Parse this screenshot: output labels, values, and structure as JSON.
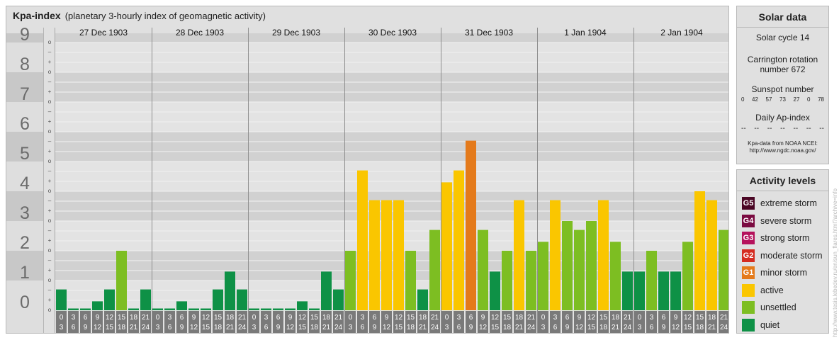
{
  "header": {
    "title": "Kpa-index",
    "subtitle": "(planetary 3-hourly index of geomagnetic activity)"
  },
  "chart_data": {
    "type": "bar",
    "ylim": [
      0,
      9
    ],
    "y_ticks": [
      "0",
      "1",
      "2",
      "3",
      "4",
      "5",
      "6",
      "7",
      "8",
      "9"
    ],
    "sub_ticks": [
      "o",
      "+",
      "–"
    ],
    "days": [
      {
        "label": "27 Dec 1903",
        "values": [
          0.7,
          0,
          0,
          0.3,
          0.7,
          2.0,
          0,
          0.7
        ]
      },
      {
        "label": "28 Dec 1903",
        "values": [
          0,
          0,
          0.3,
          0,
          0,
          0.7,
          1.3,
          0.7
        ]
      },
      {
        "label": "29 Dec 1903",
        "values": [
          0,
          0,
          0,
          0,
          0.3,
          0,
          1.3,
          0.7
        ]
      },
      {
        "label": "30 Dec 1903",
        "values": [
          2.0,
          4.7,
          3.7,
          3.7,
          3.7,
          2.0,
          0.7,
          2.7
        ]
      },
      {
        "label": "31 Dec 1903",
        "values": [
          4.3,
          4.7,
          5.7,
          2.7,
          1.3,
          2.0,
          3.7,
          2.0
        ]
      },
      {
        "label": "1 Jan 1904",
        "values": [
          2.3,
          3.7,
          3.0,
          2.7,
          3.0,
          3.7,
          2.3,
          1.3
        ]
      },
      {
        "label": "2 Jan 1904",
        "values": [
          1.3,
          2.0,
          1.3,
          1.3,
          2.3,
          4.0,
          3.7,
          2.7
        ]
      }
    ],
    "hour_tops": [
      "0",
      "3",
      "6",
      "9",
      "12",
      "15",
      "18",
      "21"
    ],
    "hour_bottoms": [
      "3",
      "6",
      "9",
      "12",
      "15",
      "18",
      "21",
      "24"
    ]
  },
  "colors": {
    "quiet": "#0e9146",
    "unsettled": "#7dbe22",
    "active": "#fac600",
    "minor": "#e47a1b",
    "moderate": "#d52c21",
    "strong": "#b5125c",
    "severe": "#7a0a40",
    "extreme": "#4a0624"
  },
  "solar": {
    "heading": "Solar data",
    "cycle": "Solar cycle 14",
    "carrington_1": "Carrington rotation",
    "carrington_2": "number 672",
    "sunspot_title": "Sunspot number",
    "sunspots": [
      "0",
      "42",
      "57",
      "73",
      "27",
      "0",
      "78"
    ],
    "ap_title": "Daily Ap-index",
    "ap_values": [
      "--",
      "--",
      "--",
      "--",
      "--",
      "--",
      "--"
    ],
    "source_1": "Kpa-data from NOAA NCEI:",
    "source_2": "http://www.ngdc.noaa.gov/"
  },
  "activity": {
    "heading": "Activity levels",
    "levels": [
      {
        "code": "G5",
        "label": "extreme storm"
      },
      {
        "code": "G4",
        "label": "severe storm"
      },
      {
        "code": "G3",
        "label": "strong storm"
      },
      {
        "code": "G2",
        "label": "moderate storm"
      },
      {
        "code": "G1",
        "label": "minor storm"
      },
      {
        "code": "",
        "label": "active"
      },
      {
        "code": "",
        "label": "unsettled"
      },
      {
        "code": "",
        "label": "quiet"
      }
    ]
  },
  "watermark": "http://www.tesis.lebedev.ru/en/sun_flares.html?archive=info"
}
